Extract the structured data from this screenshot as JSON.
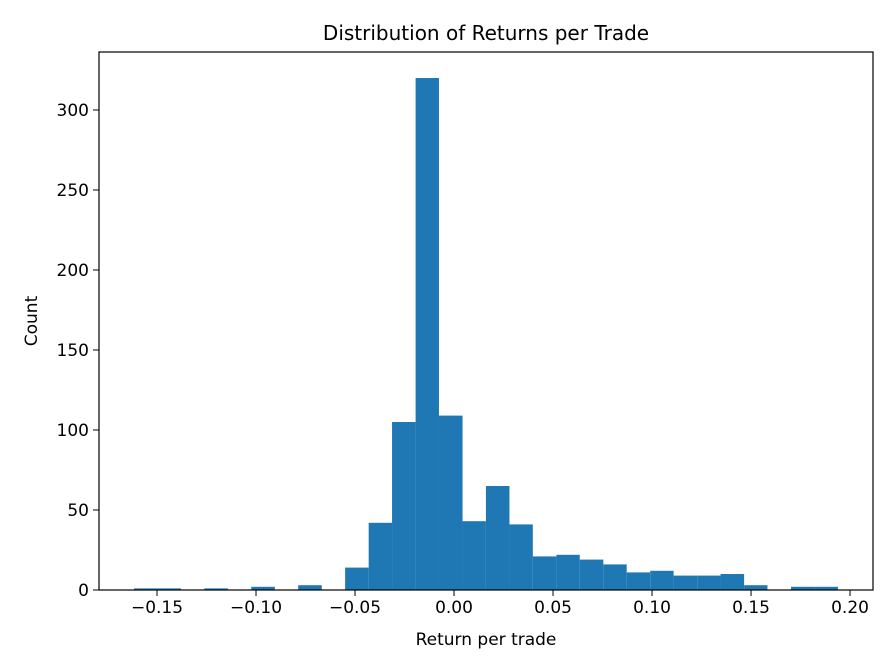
{
  "chart_data": {
    "type": "histogram",
    "title": "Distribution of Returns per Trade",
    "x_label": "Return per trade",
    "y_label": "Count",
    "color": "#1f77b4",
    "bins": [
      -0.1616,
      -0.1498,
      -0.1379,
      -0.1261,
      -0.1142,
      -0.1024,
      -0.0905,
      -0.0787,
      -0.0668,
      -0.055,
      -0.0431,
      -0.0313,
      -0.0194,
      -0.0076,
      0.0043,
      0.0161,
      0.028,
      0.0398,
      0.0517,
      0.0635,
      0.0754,
      0.0872,
      0.0991,
      0.1109,
      0.1228,
      0.1346,
      0.1465,
      0.1583,
      0.1702,
      0.182,
      0.1939
    ],
    "values": [
      1,
      1,
      0,
      1,
      0,
      2,
      0,
      3,
      0,
      14,
      42,
      105,
      320,
      109,
      43,
      65,
      41,
      21,
      22,
      19,
      16,
      11,
      12,
      9,
      9,
      10,
      3,
      0,
      2,
      2
    ],
    "xlim": [
      -0.1793,
      0.2116
    ],
    "ylim": [
      0,
      336.25
    ],
    "xticks": [
      {
        "value": -0.15,
        "label": "−0.15"
      },
      {
        "value": -0.1,
        "label": "−0.10"
      },
      {
        "value": -0.05,
        "label": "−0.05"
      },
      {
        "value": 0,
        "label": "0.00"
      },
      {
        "value": 0.05,
        "label": "0.05"
      },
      {
        "value": 0.1,
        "label": "0.10"
      },
      {
        "value": 0.15,
        "label": "0.15"
      },
      {
        "value": 0.2,
        "label": "0.20"
      }
    ],
    "yticks": [
      0,
      50,
      100,
      150,
      200,
      250,
      300
    ]
  }
}
